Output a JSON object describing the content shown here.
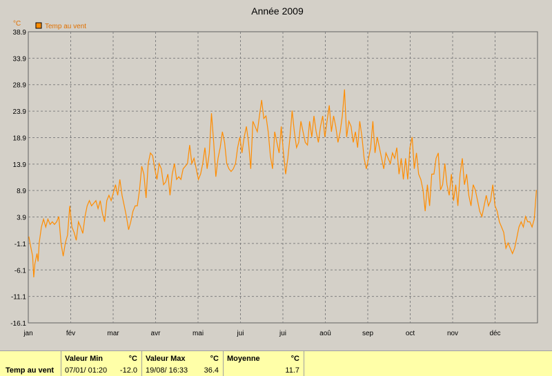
{
  "chart_data": {
    "type": "line",
    "title": "Année 2009",
    "unit": "°C",
    "series": [
      {
        "name": "Temp au vent",
        "color": "#ff8c00",
        "values": [
          [
            0.5,
            0.2
          ],
          [
            2,
            -1.5
          ],
          [
            4,
            -3.5
          ],
          [
            5,
            -7.5
          ],
          [
            6,
            -5
          ],
          [
            8,
            -3
          ],
          [
            9,
            -4.5
          ],
          [
            10,
            -1
          ],
          [
            12,
            2
          ],
          [
            14,
            3.5
          ],
          [
            16,
            2
          ],
          [
            18,
            3.5
          ],
          [
            20,
            2.5
          ],
          [
            22,
            3
          ],
          [
            24,
            2.5
          ],
          [
            26,
            3
          ],
          [
            28,
            4
          ],
          [
            30,
            -1
          ],
          [
            32,
            -3.5
          ],
          [
            34,
            -1
          ],
          [
            36,
            0.5
          ],
          [
            38,
            6
          ],
          [
            40,
            2
          ],
          [
            42,
            1
          ],
          [
            44,
            -0.5
          ],
          [
            46,
            3
          ],
          [
            48,
            2
          ],
          [
            50,
            0.8
          ],
          [
            52,
            4
          ],
          [
            54,
            6
          ],
          [
            56,
            7
          ],
          [
            58,
            6
          ],
          [
            60,
            6.5
          ],
          [
            62,
            7
          ],
          [
            64,
            5.5
          ],
          [
            66,
            7
          ],
          [
            68,
            4.5
          ],
          [
            70,
            3
          ],
          [
            72,
            7
          ],
          [
            74,
            8
          ],
          [
            76,
            7
          ],
          [
            78,
            8.5
          ],
          [
            80,
            10
          ],
          [
            82,
            8
          ],
          [
            84,
            11
          ],
          [
            86,
            8
          ],
          [
            88,
            6
          ],
          [
            90,
            4
          ],
          [
            92,
            1.5
          ],
          [
            94,
            3
          ],
          [
            96,
            5
          ],
          [
            98,
            6
          ],
          [
            100,
            6
          ],
          [
            102,
            9
          ],
          [
            104,
            13.5
          ],
          [
            106,
            12
          ],
          [
            108,
            7.5
          ],
          [
            110,
            14
          ],
          [
            112,
            16
          ],
          [
            114,
            15.5
          ],
          [
            116,
            13
          ],
          [
            118,
            11
          ],
          [
            120,
            14
          ],
          [
            122,
            13
          ],
          [
            124,
            10
          ],
          [
            126,
            10.5
          ],
          [
            128,
            12
          ],
          [
            130,
            8
          ],
          [
            132,
            12
          ],
          [
            134,
            14
          ],
          [
            136,
            11
          ],
          [
            138,
            11.5
          ],
          [
            140,
            11
          ],
          [
            142,
            13
          ],
          [
            144,
            13.5
          ],
          [
            146,
            14
          ],
          [
            148,
            17.5
          ],
          [
            150,
            14
          ],
          [
            152,
            15
          ],
          [
            154,
            13
          ],
          [
            156,
            11
          ],
          [
            158,
            12
          ],
          [
            160,
            14
          ],
          [
            162,
            17
          ],
          [
            164,
            13
          ],
          [
            166,
            16
          ],
          [
            168,
            23.5
          ],
          [
            170,
            18
          ],
          [
            172,
            11.5
          ],
          [
            174,
            15
          ],
          [
            176,
            17
          ],
          [
            178,
            20
          ],
          [
            180,
            18
          ],
          [
            182,
            14
          ],
          [
            184,
            13
          ],
          [
            186,
            12.5
          ],
          [
            188,
            13
          ],
          [
            190,
            14
          ],
          [
            192,
            17
          ],
          [
            194,
            19
          ],
          [
            196,
            16
          ],
          [
            198,
            19
          ],
          [
            200,
            21
          ],
          [
            202,
            18
          ],
          [
            204,
            13
          ],
          [
            206,
            22
          ],
          [
            208,
            21
          ],
          [
            210,
            20
          ],
          [
            212,
            23
          ],
          [
            214,
            26
          ],
          [
            216,
            22.5
          ],
          [
            218,
            23
          ],
          [
            220,
            20
          ],
          [
            222,
            15.5
          ],
          [
            224,
            13
          ],
          [
            226,
            20
          ],
          [
            228,
            18
          ],
          [
            230,
            16
          ],
          [
            232,
            21
          ],
          [
            234,
            16
          ],
          [
            236,
            12
          ],
          [
            238,
            15
          ],
          [
            240,
            19
          ],
          [
            242,
            24
          ],
          [
            244,
            20
          ],
          [
            246,
            17
          ],
          [
            248,
            18
          ],
          [
            250,
            22
          ],
          [
            252,
            20
          ],
          [
            254,
            18
          ],
          [
            256,
            17.5
          ],
          [
            258,
            22
          ],
          [
            260,
            19
          ],
          [
            262,
            23
          ],
          [
            264,
            20
          ],
          [
            266,
            18
          ],
          [
            268,
            21
          ],
          [
            270,
            23
          ],
          [
            272,
            19
          ],
          [
            274,
            22
          ],
          [
            276,
            25
          ],
          [
            278,
            20
          ],
          [
            280,
            23
          ],
          [
            282,
            21
          ],
          [
            284,
            18
          ],
          [
            286,
            20
          ],
          [
            288,
            23
          ],
          [
            290,
            28
          ],
          [
            292,
            19
          ],
          [
            294,
            22
          ],
          [
            296,
            21
          ],
          [
            298,
            18
          ],
          [
            300,
            20
          ],
          [
            302,
            17
          ],
          [
            304,
            22
          ],
          [
            306,
            19
          ],
          [
            308,
            15
          ],
          [
            310,
            13
          ],
          [
            312,
            15
          ],
          [
            314,
            17
          ],
          [
            316,
            22
          ],
          [
            318,
            16
          ],
          [
            320,
            19
          ],
          [
            322,
            17
          ],
          [
            324,
            15
          ],
          [
            326,
            13
          ],
          [
            328,
            16
          ],
          [
            330,
            15
          ],
          [
            332,
            14
          ],
          [
            334,
            16
          ],
          [
            336,
            15
          ],
          [
            338,
            17
          ],
          [
            340,
            12
          ],
          [
            342,
            15
          ],
          [
            344,
            11
          ],
          [
            346,
            15
          ],
          [
            348,
            11
          ],
          [
            350,
            17
          ],
          [
            352,
            19
          ],
          [
            354,
            13
          ],
          [
            356,
            16
          ],
          [
            358,
            12
          ],
          [
            360,
            11
          ],
          [
            362,
            9
          ],
          [
            364,
            5
          ],
          [
            366,
            10
          ],
          [
            368,
            6
          ],
          [
            370,
            12
          ],
          [
            372,
            12
          ],
          [
            374,
            15
          ],
          [
            376,
            16
          ],
          [
            378,
            9
          ],
          [
            380,
            10
          ],
          [
            382,
            14
          ],
          [
            384,
            10
          ],
          [
            386,
            8
          ],
          [
            388,
            12
          ],
          [
            390,
            7
          ],
          [
            392,
            10
          ],
          [
            394,
            6
          ],
          [
            396,
            12
          ],
          [
            398,
            15
          ],
          [
            400,
            10
          ],
          [
            402,
            12
          ],
          [
            404,
            8
          ],
          [
            406,
            6
          ],
          [
            408,
            10
          ],
          [
            410,
            9
          ],
          [
            412,
            7
          ],
          [
            414,
            5
          ],
          [
            416,
            4
          ],
          [
            418,
            6
          ],
          [
            420,
            8
          ],
          [
            422,
            6
          ],
          [
            424,
            7
          ],
          [
            426,
            10
          ],
          [
            428,
            6
          ],
          [
            430,
            5
          ],
          [
            432,
            3
          ],
          [
            434,
            2
          ],
          [
            436,
            1
          ],
          [
            438,
            -2
          ],
          [
            440,
            -1
          ],
          [
            442,
            -2
          ],
          [
            444,
            -3
          ],
          [
            446,
            -2
          ],
          [
            448,
            0
          ],
          [
            450,
            2
          ],
          [
            452,
            3
          ],
          [
            454,
            2
          ],
          [
            456,
            4
          ],
          [
            458,
            3
          ],
          [
            460,
            3
          ],
          [
            462,
            2
          ],
          [
            464,
            3.5
          ],
          [
            466,
            9
          ]
        ]
      }
    ],
    "x_months": [
      "jan",
      "fév",
      "mar",
      "avr",
      "mai",
      "jui",
      "jui",
      "aoû",
      "sep",
      "oct",
      "nov",
      "déc"
    ],
    "y_ticks": [
      38.9,
      33.9,
      28.9,
      23.9,
      18.9,
      13.9,
      8.9,
      3.9,
      -1.1,
      -6.1,
      -11.1,
      -16.1
    ],
    "ylim": [
      -16.1,
      38.9
    ],
    "grid": true,
    "legend": "top-left"
  },
  "stats": {
    "row_label": "Temp au vent",
    "min": {
      "label": "Valeur Min",
      "unit": "°C",
      "date": "07/01/  01:20",
      "value": "-12.0"
    },
    "max": {
      "label": "Valeur Max",
      "unit": "°C",
      "date": "19/08/  16:33",
      "value": "36.4"
    },
    "avg": {
      "label": "Moyenne",
      "unit": "°C",
      "value": "11.7"
    }
  }
}
